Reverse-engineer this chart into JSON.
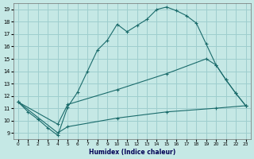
{
  "xlabel": "Humidex (Indice chaleur)",
  "bg_color": "#c5e8e5",
  "grid_color": "#9ecece",
  "line_color": "#1a6b6b",
  "xlim": [
    -0.5,
    23.5
  ],
  "ylim": [
    8.5,
    19.5
  ],
  "xticks": [
    0,
    1,
    2,
    3,
    4,
    5,
    6,
    7,
    8,
    9,
    10,
    11,
    12,
    13,
    14,
    15,
    16,
    17,
    18,
    19,
    20,
    21,
    22,
    23
  ],
  "yticks": [
    9,
    10,
    11,
    12,
    13,
    14,
    15,
    16,
    17,
    18,
    19
  ],
  "line1_x": [
    0,
    1,
    2,
    3,
    4,
    5,
    6,
    7,
    8,
    9,
    10,
    11,
    12,
    13,
    14,
    15,
    16,
    17,
    18,
    19,
    20,
    21,
    22,
    23
  ],
  "line1_y": [
    11.5,
    10.7,
    10.1,
    9.4,
    8.8,
    11.1,
    12.3,
    14.0,
    15.7,
    16.5,
    17.8,
    17.2,
    17.7,
    18.2,
    19.0,
    19.2,
    18.9,
    18.5,
    17.9,
    16.2,
    14.5,
    13.3,
    12.2,
    11.2
  ],
  "line2_x": [
    0,
    4,
    5,
    10,
    15,
    19,
    20,
    21,
    22,
    23
  ],
  "line2_y": [
    11.5,
    9.7,
    11.3,
    12.5,
    13.8,
    15.0,
    14.5,
    13.3,
    12.2,
    11.2
  ],
  "line3_x": [
    0,
    4,
    5,
    10,
    15,
    20,
    23
  ],
  "line3_y": [
    11.5,
    9.0,
    9.5,
    10.2,
    10.7,
    11.0,
    11.2
  ]
}
